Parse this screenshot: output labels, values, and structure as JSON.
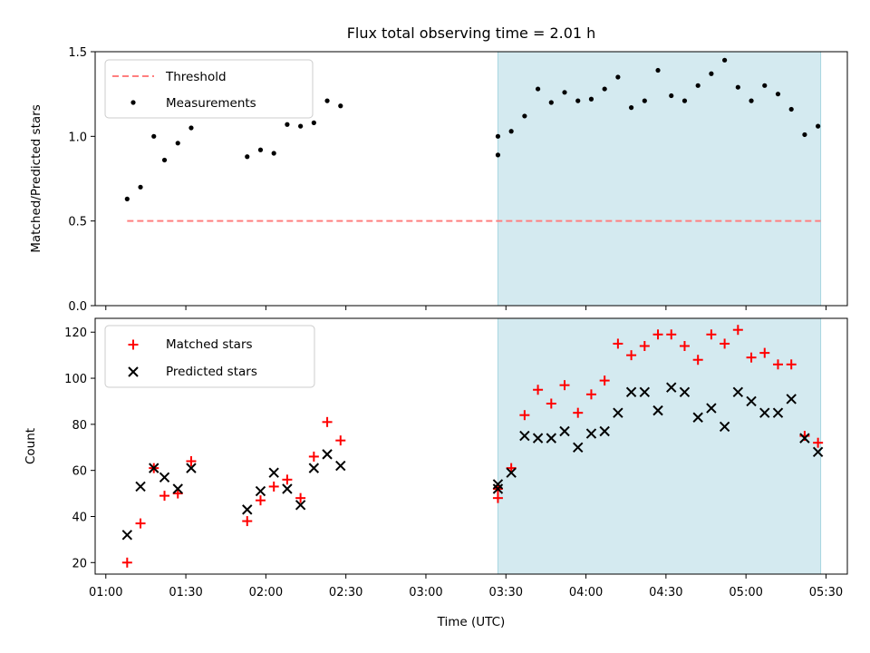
{
  "title": "Flux total observing time = 2.01 h",
  "colors": {
    "threshold": "#ff7f7f",
    "measurement": "#000000",
    "matched": "#ff0000",
    "predicted": "#000000",
    "shade": "#d4eaf0",
    "shade_edge": "#a8d6e0"
  },
  "chart_data": [
    {
      "type": "scatter",
      "panel": "top",
      "xlabel": "",
      "ylabel": "Matched/Predicted stars",
      "ylim": [
        0,
        1.5
      ],
      "yticks": [
        "0.0",
        "0.5",
        "1.0",
        "1.5"
      ],
      "x_range": [
        "00:56",
        "05:38"
      ],
      "shaded_interval": [
        "03:27",
        "05:28"
      ],
      "legend": {
        "position": "upper-left",
        "entries": [
          "Threshold",
          "Measurements"
        ]
      },
      "threshold": {
        "name": "Threshold",
        "y": 0.5,
        "x": [
          "01:08",
          "05:28"
        ]
      },
      "series": [
        {
          "name": "Measurements",
          "marker": "dot",
          "points": [
            [
              "01:08",
              0.63
            ],
            [
              "01:13",
              0.7
            ],
            [
              "01:18",
              1.0
            ],
            [
              "01:22",
              0.86
            ],
            [
              "01:27",
              0.96
            ],
            [
              "01:32",
              1.05
            ],
            [
              "01:53",
              0.88
            ],
            [
              "01:58",
              0.92
            ],
            [
              "02:03",
              0.9
            ],
            [
              "02:08",
              1.07
            ],
            [
              "02:13",
              1.06
            ],
            [
              "02:18",
              1.08
            ],
            [
              "02:23",
              1.21
            ],
            [
              "02:28",
              1.18
            ],
            [
              "03:27",
              1.0
            ],
            [
              "03:27",
              0.89
            ],
            [
              "03:32",
              1.03
            ],
            [
              "03:37",
              1.12
            ],
            [
              "03:42",
              1.28
            ],
            [
              "03:47",
              1.2
            ],
            [
              "03:52",
              1.26
            ],
            [
              "03:57",
              1.21
            ],
            [
              "04:02",
              1.22
            ],
            [
              "04:07",
              1.28
            ],
            [
              "04:12",
              1.35
            ],
            [
              "04:17",
              1.17
            ],
            [
              "04:22",
              1.21
            ],
            [
              "04:27",
              1.39
            ],
            [
              "04:32",
              1.24
            ],
            [
              "04:37",
              1.21
            ],
            [
              "04:42",
              1.3
            ],
            [
              "04:47",
              1.37
            ],
            [
              "04:52",
              1.45
            ],
            [
              "04:57",
              1.29
            ],
            [
              "05:02",
              1.21
            ],
            [
              "05:07",
              1.3
            ],
            [
              "05:12",
              1.25
            ],
            [
              "05:17",
              1.16
            ],
            [
              "05:22",
              1.01
            ],
            [
              "05:27",
              1.06
            ]
          ]
        }
      ]
    },
    {
      "type": "scatter",
      "panel": "bottom",
      "xlabel": "Time (UTC)",
      "ylabel": "Count",
      "ylim": [
        15,
        126
      ],
      "yticks": [
        "20",
        "40",
        "60",
        "80",
        "100",
        "120"
      ],
      "xticks": [
        "01:00",
        "01:30",
        "02:00",
        "02:30",
        "03:00",
        "03:30",
        "04:00",
        "04:30",
        "05:00",
        "05:30"
      ],
      "x_range": [
        "00:56",
        "05:38"
      ],
      "shaded_interval": [
        "03:27",
        "05:28"
      ],
      "legend": {
        "position": "upper-left",
        "entries": [
          "Matched stars",
          "Predicted stars"
        ]
      },
      "series": [
        {
          "name": "Matched stars",
          "marker": "plus",
          "points": [
            [
              "01:08",
              20
            ],
            [
              "01:13",
              37
            ],
            [
              "01:18",
              61
            ],
            [
              "01:22",
              49
            ],
            [
              "01:27",
              50
            ],
            [
              "01:32",
              64
            ],
            [
              "01:53",
              38
            ],
            [
              "01:58",
              47
            ],
            [
              "02:03",
              53
            ],
            [
              "02:08",
              56
            ],
            [
              "02:13",
              48
            ],
            [
              "02:18",
              66
            ],
            [
              "02:23",
              81
            ],
            [
              "02:28",
              73
            ],
            [
              "03:27",
              48
            ],
            [
              "03:27",
              52
            ],
            [
              "03:32",
              61
            ],
            [
              "03:37",
              84
            ],
            [
              "03:42",
              95
            ],
            [
              "03:47",
              89
            ],
            [
              "03:52",
              97
            ],
            [
              "03:57",
              85
            ],
            [
              "04:02",
              93
            ],
            [
              "04:07",
              99
            ],
            [
              "04:12",
              115
            ],
            [
              "04:17",
              110
            ],
            [
              "04:22",
              114
            ],
            [
              "04:27",
              119
            ],
            [
              "04:32",
              119
            ],
            [
              "04:37",
              114
            ],
            [
              "04:42",
              108
            ],
            [
              "04:47",
              119
            ],
            [
              "04:52",
              115
            ],
            [
              "04:57",
              121
            ],
            [
              "05:02",
              109
            ],
            [
              "05:07",
              111
            ],
            [
              "05:12",
              106
            ],
            [
              "05:17",
              106
            ],
            [
              "05:22",
              75
            ],
            [
              "05:27",
              72
            ]
          ]
        },
        {
          "name": "Predicted stars",
          "marker": "x",
          "points": [
            [
              "01:08",
              32
            ],
            [
              "01:13",
              53
            ],
            [
              "01:18",
              61
            ],
            [
              "01:22",
              57
            ],
            [
              "01:27",
              52
            ],
            [
              "01:32",
              61
            ],
            [
              "01:53",
              43
            ],
            [
              "01:58",
              51
            ],
            [
              "02:03",
              59
            ],
            [
              "02:08",
              52
            ],
            [
              "02:13",
              45
            ],
            [
              "02:18",
              61
            ],
            [
              "02:23",
              67
            ],
            [
              "02:28",
              62
            ],
            [
              "03:27",
              52
            ],
            [
              "03:27",
              54
            ],
            [
              "03:32",
              59
            ],
            [
              "03:37",
              75
            ],
            [
              "03:42",
              74
            ],
            [
              "03:47",
              74
            ],
            [
              "03:52",
              77
            ],
            [
              "03:57",
              70
            ],
            [
              "04:02",
              76
            ],
            [
              "04:07",
              77
            ],
            [
              "04:12",
              85
            ],
            [
              "04:17",
              94
            ],
            [
              "04:22",
              94
            ],
            [
              "04:27",
              86
            ],
            [
              "04:32",
              96
            ],
            [
              "04:37",
              94
            ],
            [
              "04:42",
              83
            ],
            [
              "04:47",
              87
            ],
            [
              "04:52",
              79
            ],
            [
              "04:57",
              94
            ],
            [
              "05:02",
              90
            ],
            [
              "05:07",
              85
            ],
            [
              "05:12",
              85
            ],
            [
              "05:17",
              91
            ],
            [
              "05:22",
              74
            ],
            [
              "05:27",
              68
            ]
          ]
        }
      ]
    }
  ]
}
